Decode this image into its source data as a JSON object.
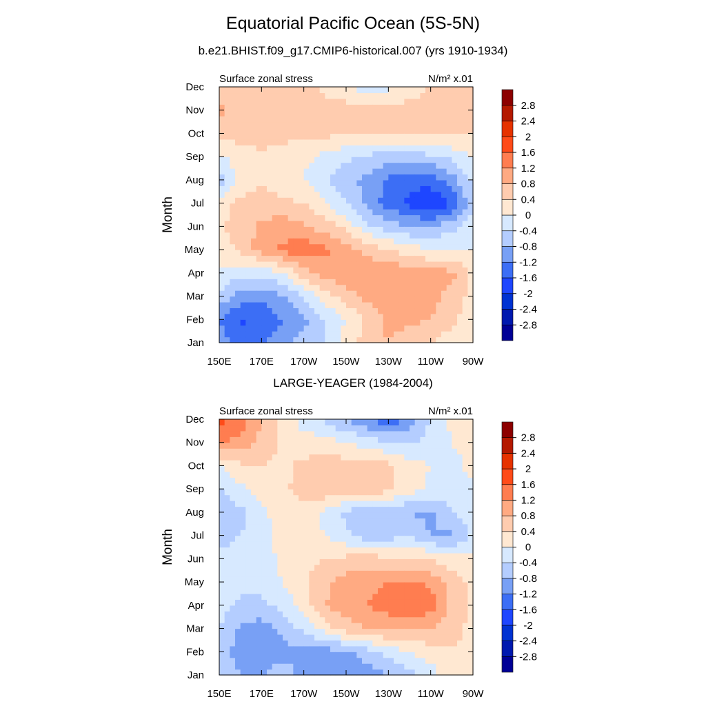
{
  "header": {
    "title": "Equatorial Pacific Ocean (5S-5N)",
    "subtitle": "b.e21.BHIST.f09_g17.CMIP6-historical.007 (yrs 1910-1934)",
    "lower_title": "LARGE-YEAGER (1984-2004)"
  },
  "colorbar": {
    "colors": [
      "#000096",
      "#0019AF",
      "#0032D2",
      "#1E46FF",
      "#3C6EF5",
      "#78A0F5",
      "#B4CDFF",
      "#D7E9FF",
      "#FFE8D2",
      "#FFCCAF",
      "#FFAA82",
      "#FF7D50",
      "#FF4B19",
      "#E63200",
      "#B41900",
      "#8C0000"
    ],
    "levels": [
      -2.8,
      -2.4,
      -2,
      -1.6,
      -1.2,
      -0.8,
      -0.4,
      0,
      0.4,
      0.8,
      1.2,
      1.6,
      2,
      2.4,
      2.8
    ],
    "labels": [
      "-2.8",
      "-2.4",
      "-2",
      "-1.6",
      "-1.2",
      "-0.8",
      "-0.4",
      "0",
      "0.4",
      "0.8",
      "1.2",
      "1.6",
      "2",
      "2.4",
      "2.8"
    ]
  },
  "chart_data": [
    {
      "type": "heatmap",
      "title": "b.e21.BHIST.f09_g17.CMIP6-historical.007 (yrs 1910-1934)",
      "left_label": "Surface zonal stress",
      "units": "N/m² x.01",
      "xlabel": "",
      "ylabel": "Month",
      "x": [
        150,
        160,
        170,
        180,
        190,
        200,
        210,
        220,
        230,
        240,
        250,
        260,
        270
      ],
      "x_tick_labels": [
        "150E",
        "170E",
        "170W",
        "150W",
        "130W",
        "110W",
        "90W"
      ],
      "y_tick_labels": [
        "Jan",
        "Feb",
        "Mar",
        "Apr",
        "May",
        "Jun",
        "Jul",
        "Aug",
        "Sep",
        "Oct",
        "Nov",
        "Dec"
      ],
      "values": [
        [
          -1.0,
          -1.3,
          -1.2,
          -1.0,
          -0.6,
          -0.4,
          0.2,
          0.6,
          0.8,
          0.6,
          0.4,
          0.0,
          0.0
        ],
        [
          -1.2,
          -1.7,
          -1.5,
          -1.2,
          -0.9,
          -0.4,
          0.0,
          0.5,
          0.9,
          0.9,
          0.8,
          0.6,
          0.0
        ],
        [
          -0.5,
          -1.0,
          -1.1,
          -0.8,
          -0.4,
          0.2,
          0.6,
          0.9,
          1.1,
          1.0,
          0.9,
          0.7,
          0.2
        ],
        [
          -0.1,
          -0.3,
          -0.3,
          0.0,
          0.6,
          1.0,
          1.1,
          1.1,
          1.1,
          1.1,
          1.0,
          0.9,
          0.3
        ],
        [
          0.2,
          0.5,
          1.0,
          1.3,
          1.5,
          1.3,
          1.0,
          0.7,
          0.4,
          0.2,
          0.0,
          0.0,
          0.0
        ],
        [
          0.3,
          0.6,
          0.9,
          1.0,
          0.9,
          0.6,
          0.3,
          -0.3,
          -0.6,
          -0.8,
          -0.8,
          -0.5,
          -0.2
        ],
        [
          0.2,
          0.5,
          0.6,
          0.5,
          0.4,
          0.0,
          -0.4,
          -0.9,
          -1.4,
          -1.7,
          -2.0,
          -1.6,
          -0.5
        ],
        [
          -0.6,
          0.2,
          0.3,
          0.2,
          0.0,
          -0.4,
          -0.7,
          -0.9,
          -1.3,
          -1.5,
          -1.4,
          -1.0,
          -0.3
        ],
        [
          -0.1,
          0.2,
          0.3,
          0.3,
          0.1,
          -0.1,
          -0.3,
          -0.5,
          -0.6,
          -0.6,
          -0.5,
          -0.3,
          0.0
        ],
        [
          0.5,
          0.6,
          0.6,
          0.5,
          0.5,
          0.5,
          0.4,
          0.4,
          0.4,
          0.4,
          0.5,
          0.5,
          0.4
        ],
        [
          0.9,
          0.7,
          0.6,
          0.6,
          0.6,
          0.6,
          0.6,
          0.5,
          0.5,
          0.6,
          0.6,
          0.6,
          0.5
        ],
        [
          0.6,
          0.5,
          0.5,
          0.5,
          0.5,
          0.3,
          0.1,
          -0.3,
          -0.1,
          0.2,
          0.4,
          0.5,
          0.4
        ]
      ]
    },
    {
      "type": "heatmap",
      "title": "LARGE-YEAGER (1984-2004)",
      "left_label": "Surface zonal stress",
      "units": "N/m² x.01",
      "xlabel": "",
      "ylabel": "Month",
      "x": [
        150,
        160,
        170,
        180,
        190,
        200,
        210,
        220,
        230,
        240,
        250,
        260,
        270
      ],
      "x_tick_labels": [
        "150E",
        "170E",
        "170W",
        "150W",
        "130W",
        "110W",
        "90W"
      ],
      "y_tick_labels": [
        "Jan",
        "Feb",
        "Mar",
        "Apr",
        "May",
        "Jun",
        "Jul",
        "Aug",
        "Sep",
        "Oct",
        "Nov",
        "Dec"
      ],
      "values": [
        [
          -0.5,
          -0.8,
          -0.8,
          -0.6,
          -0.9,
          -1.2,
          -1.2,
          -1.0,
          -0.8,
          -0.5,
          -0.2,
          0.3,
          0.3
        ],
        [
          -0.6,
          -1.0,
          -1.0,
          -0.9,
          -0.9,
          -1.0,
          -0.9,
          -0.6,
          -0.3,
          0.0,
          0.2,
          0.4,
          0.3
        ],
        [
          -0.4,
          -0.9,
          -1.0,
          -0.7,
          -0.3,
          0.2,
          0.6,
          0.8,
          0.9,
          0.9,
          0.8,
          0.5,
          0.3
        ],
        [
          -0.2,
          -0.5,
          -0.5,
          -0.3,
          0.2,
          0.8,
          1.0,
          1.2,
          1.4,
          1.6,
          1.4,
          0.7,
          0.3
        ],
        [
          0.0,
          -0.3,
          -0.3,
          0.0,
          0.3,
          0.7,
          1.0,
          1.0,
          1.2,
          1.3,
          1.1,
          0.6,
          0.3
        ],
        [
          -0.3,
          -0.3,
          -0.2,
          0.1,
          0.3,
          0.4,
          0.5,
          0.6,
          0.5,
          0.5,
          0.4,
          0.2,
          0.1
        ],
        [
          -0.5,
          -0.4,
          -0.2,
          0.2,
          0.2,
          0.0,
          -0.3,
          -0.6,
          -0.6,
          -0.4,
          -0.8,
          -0.9,
          -0.3
        ],
        [
          -0.8,
          -0.5,
          -0.1,
          0.2,
          0.2,
          -0.1,
          -0.5,
          -0.7,
          -0.7,
          -0.8,
          -0.9,
          -0.4,
          -0.1
        ],
        [
          -0.5,
          -0.1,
          0.2,
          0.3,
          0.6,
          0.7,
          0.6,
          0.7,
          0.5,
          0.2,
          -0.1,
          -0.2,
          -0.1
        ],
        [
          -0.1,
          0.3,
          0.4,
          0.3,
          0.5,
          0.6,
          0.6,
          0.7,
          0.5,
          0.2,
          0.0,
          -0.2,
          0.2
        ],
        [
          1.2,
          1.1,
          0.7,
          0.3,
          0.2,
          0.2,
          0.0,
          -0.2,
          -0.4,
          -0.5,
          -0.2,
          0.0,
          0.2
        ],
        [
          1.8,
          1.4,
          0.8,
          0.3,
          -0.2,
          -0.5,
          -0.8,
          -1.1,
          -1.5,
          -1.0,
          -0.4,
          0.1,
          0.2
        ]
      ]
    }
  ]
}
